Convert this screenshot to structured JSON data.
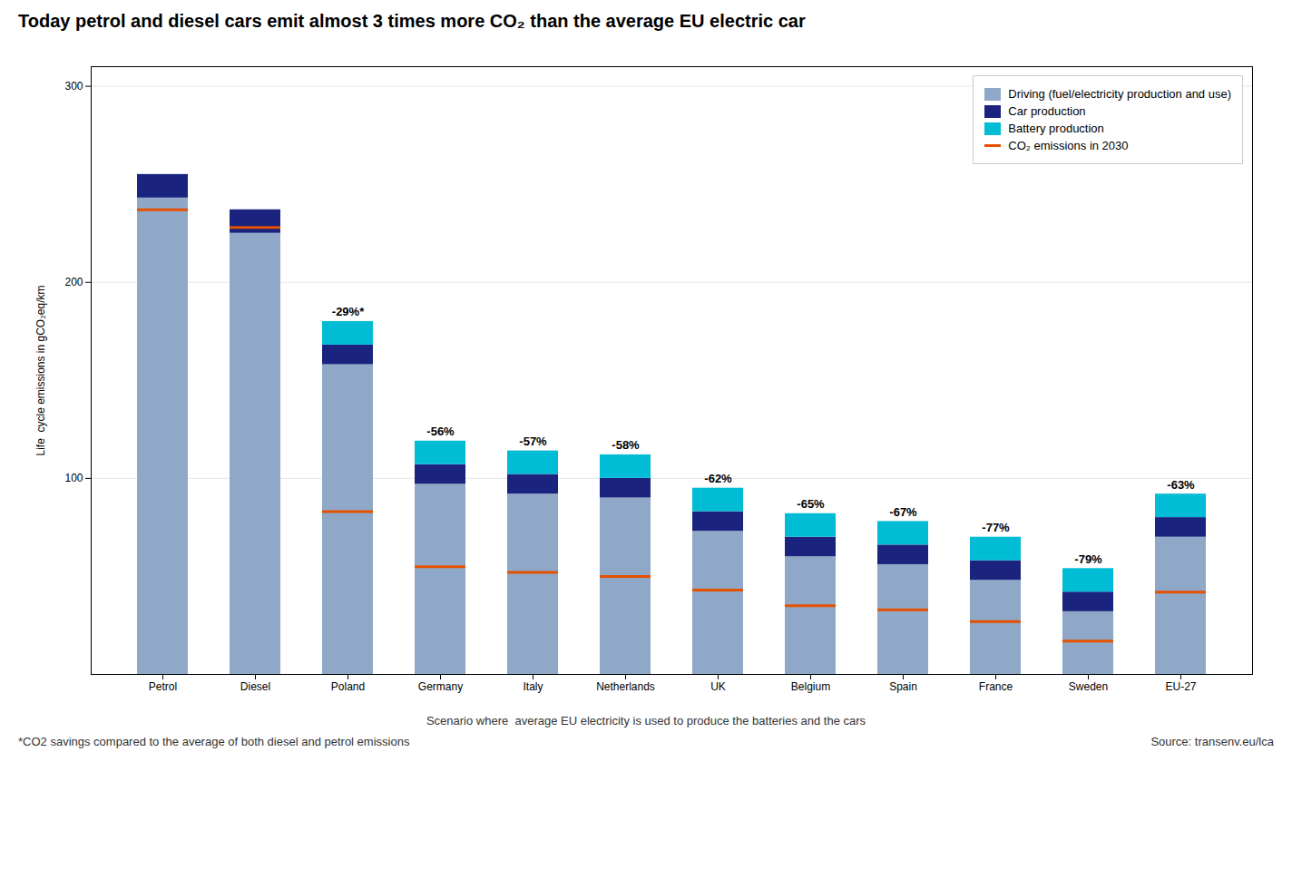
{
  "chart_data": {
    "type": "bar",
    "title": "Today petrol and diesel cars emit almost 3 times more CO₂ than the average EU electric car",
    "stacked": true,
    "categories": [
      "Petrol",
      "Diesel",
      "Poland",
      "Germany",
      "Italy",
      "Netherlands",
      "UK",
      "Belgium",
      "Spain",
      "France",
      "Sweden",
      "EU-27"
    ],
    "series": [
      {
        "name": "Driving (fuel/electricity production and use)",
        "color": "#8fa8c8",
        "values": [
          243,
          225,
          158,
          97,
          92,
          90,
          73,
          60,
          56,
          48,
          32,
          70
        ]
      },
      {
        "name": "Car production",
        "color": "#1a237e",
        "values": [
          12,
          12,
          10,
          10,
          10,
          10,
          10,
          10,
          10,
          10,
          10,
          10
        ]
      },
      {
        "name": "Battery production",
        "color": "#00bcd4",
        "values": [
          0,
          0,
          12,
          12,
          12,
          12,
          12,
          12,
          12,
          12,
          12,
          12
        ]
      },
      {
        "name": "CO₂ emissions in 2030",
        "type": "tick",
        "color": "#e65100",
        "values": [
          237,
          228,
          83,
          55,
          52,
          50,
          43,
          35,
          33,
          27,
          17,
          42
        ]
      }
    ],
    "percentage_labels": [
      null,
      null,
      "-29%*",
      "-56%",
      "-57%",
      "-58%",
      "-62%",
      "-65%",
      "-67%",
      "-77%",
      "-79%",
      "-63%"
    ],
    "ylabel": "Life  cycle emissions in gCO₂eq/km",
    "ylim": [
      0,
      310
    ],
    "yticks": [
      100,
      200,
      300
    ],
    "grid": true,
    "legend": "upper right",
    "annotations": [
      "Scenario where  average EU electricity is used to produce the batteries and the cars",
      "*CO2 savings compared to the average of both diesel and petrol emissions",
      "Source: transenv.eu/lca"
    ]
  }
}
